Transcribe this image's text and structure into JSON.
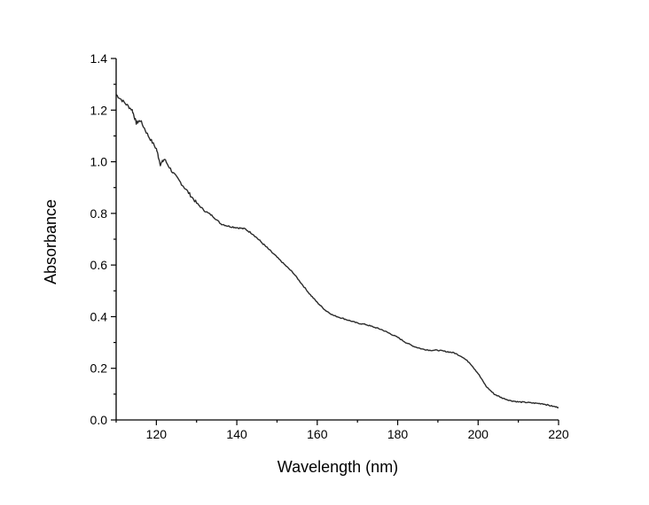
{
  "chart_data": {
    "type": "line",
    "title": "",
    "xlabel": "Wavelength (nm)",
    "ylabel": "Absorbance",
    "xlim": [
      110,
      220
    ],
    "ylim": [
      0.0,
      1.4
    ],
    "x_ticks": [
      120,
      140,
      160,
      180,
      200,
      220
    ],
    "x_tick_labels": [
      "120",
      "140",
      "160",
      "180",
      "200",
      "220"
    ],
    "y_ticks": [
      0.0,
      0.2,
      0.4,
      0.6,
      0.8,
      1.0,
      1.2,
      1.4
    ],
    "y_tick_labels": [
      "0.0",
      "0.2",
      "0.4",
      "0.6",
      "0.8",
      "1.0",
      "1.2",
      "1.4"
    ],
    "grid": false,
    "legend": "none",
    "series": [
      {
        "color": "#2b2b2b",
        "x": [
          110,
          112,
          114,
          115,
          116,
          118,
          120,
          121,
          122,
          124,
          126,
          128,
          130,
          132,
          134,
          136,
          138,
          140,
          142,
          144,
          146,
          148,
          150,
          152,
          154,
          156,
          158,
          160,
          162,
          164,
          166,
          168,
          170,
          172,
          174,
          176,
          178,
          180,
          182,
          184,
          186,
          188,
          190,
          192,
          194,
          196,
          198,
          200,
          202,
          204,
          206,
          208,
          210,
          212,
          214,
          216,
          218,
          220
        ],
        "y": [
          1.26,
          1.23,
          1.2,
          1.15,
          1.16,
          1.1,
          1.05,
          0.99,
          1.01,
          0.96,
          0.92,
          0.88,
          0.84,
          0.81,
          0.79,
          0.76,
          0.75,
          0.745,
          0.74,
          0.72,
          0.69,
          0.66,
          0.63,
          0.6,
          0.57,
          0.53,
          0.49,
          0.455,
          0.425,
          0.405,
          0.395,
          0.385,
          0.375,
          0.37,
          0.36,
          0.35,
          0.335,
          0.32,
          0.3,
          0.285,
          0.275,
          0.27,
          0.27,
          0.265,
          0.26,
          0.245,
          0.22,
          0.18,
          0.13,
          0.1,
          0.085,
          0.075,
          0.07,
          0.068,
          0.065,
          0.063,
          0.055,
          0.048
        ]
      }
    ]
  }
}
